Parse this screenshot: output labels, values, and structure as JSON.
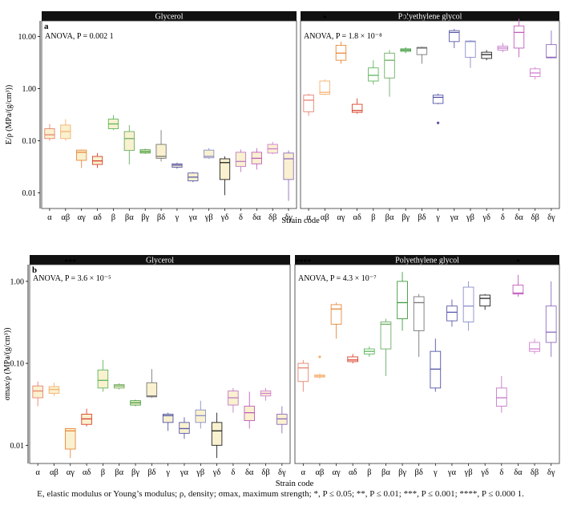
{
  "caption": "E, elastic modulus or Young’s modulus; ρ, density; σmax, maximum strength; *, P ≤ 0.05; **, P ≤ 0.01; ***, P ≤ 0.001; ****, P ≤ 0.000 1.",
  "colors": {
    "α": "#e8826f",
    "αβ": "#f5b070",
    "αγ": "#e9883a",
    "αδ": "#d9412b",
    "β": "#5fb65e",
    "βα": "#6cae64",
    "βγ": "#3c9a3c",
    "βδ": "#777777",
    "γ": "#5255a6",
    "γα": "#5a5aa8",
    "γβ": "#8b8fc8",
    "γδ": "#222222",
    "δ": "#c27ac6",
    "δα": "#c05dbd",
    "δβ": "#d17fd0",
    "δγ": "#8f6dbd"
  },
  "chart_data": [
    {
      "type": "box",
      "panel_label": "a",
      "ylabel": "E/ρ (MPa/(g/cm³))",
      "xlabel": "Strain code",
      "yscale": "log",
      "ylim": [
        0.005,
        20
      ],
      "yticks": [
        "0.01",
        "0.10",
        "1.00",
        "10.00"
      ],
      "facets": [
        {
          "title": "Glycerol",
          "anova": "ANOVA, P = 0.002 1",
          "fill": "#f9f1cf",
          "categories": [
            "α",
            "αβ",
            "αγ",
            "αδ",
            "β",
            "βα",
            "βγ",
            "βδ",
            "γ",
            "γα",
            "γβ",
            "γδ",
            "δ",
            "δα",
            "δβ",
            "δγ"
          ],
          "boxes": [
            {
              "min": 0.1,
              "q1": 0.11,
              "median": 0.13,
              "q3": 0.17,
              "max": 0.21,
              "sig": ""
            },
            {
              "min": 0.1,
              "q1": 0.11,
              "median": 0.15,
              "q3": 0.2,
              "max": 0.26,
              "sig": ""
            },
            {
              "min": 0.03,
              "q1": 0.042,
              "median": 0.06,
              "q3": 0.066,
              "max": 0.068,
              "sig": ""
            },
            {
              "min": 0.03,
              "q1": 0.035,
              "median": 0.041,
              "q3": 0.05,
              "max": 0.058,
              "sig": ""
            },
            {
              "min": 0.16,
              "q1": 0.17,
              "median": 0.21,
              "q3": 0.26,
              "max": 0.31,
              "sig": ""
            },
            {
              "min": 0.035,
              "q1": 0.065,
              "median": 0.11,
              "q3": 0.15,
              "max": 0.2,
              "sig": ""
            },
            {
              "min": 0.056,
              "q1": 0.058,
              "median": 0.062,
              "q3": 0.067,
              "max": 0.07,
              "sig": ""
            },
            {
              "min": 0.04,
              "q1": 0.046,
              "median": 0.05,
              "q3": 0.085,
              "max": 0.16,
              "sig": ""
            },
            {
              "min": 0.029,
              "q1": 0.031,
              "median": 0.034,
              "q3": 0.036,
              "max": 0.038,
              "sig": ""
            },
            {
              "min": 0.016,
              "q1": 0.017,
              "median": 0.02,
              "q3": 0.024,
              "max": 0.025,
              "sig": ""
            },
            {
              "min": 0.045,
              "q1": 0.047,
              "median": 0.05,
              "q3": 0.066,
              "max": 0.072,
              "sig": ""
            },
            {
              "min": 0.009,
              "q1": 0.018,
              "median": 0.038,
              "q3": 0.045,
              "max": 0.05,
              "sig": ""
            },
            {
              "min": 0.025,
              "q1": 0.032,
              "median": 0.04,
              "q3": 0.06,
              "max": 0.068,
              "sig": ""
            },
            {
              "min": 0.028,
              "q1": 0.036,
              "median": 0.046,
              "q3": 0.06,
              "max": 0.072,
              "sig": ""
            },
            {
              "min": 0.055,
              "q1": 0.058,
              "median": 0.07,
              "q3": 0.085,
              "max": 0.095,
              "sig": ""
            },
            {
              "min": 0.007,
              "q1": 0.018,
              "median": 0.045,
              "q3": 0.058,
              "max": 0.065,
              "sig": ""
            }
          ]
        },
        {
          "title": "Polyethylene glycol",
          "anova": "ANOVA, P = 1.8 × 10⁻⁸",
          "fill": "#ffffff",
          "categories": [
            "α",
            "αβ",
            "αγ",
            "αδ",
            "β",
            "βα",
            "βγ",
            "βδ",
            "γ",
            "γα",
            "γβ",
            "γδ",
            "δ",
            "δα",
            "δβ",
            "δγ"
          ],
          "boxes": [
            {
              "min": 0.3,
              "q1": 0.36,
              "median": 0.6,
              "q3": 0.75,
              "max": 0.8,
              "sig": ""
            },
            {
              "min": 0.75,
              "q1": 0.78,
              "median": 0.85,
              "q3": 1.4,
              "max": 1.5,
              "sig": "*"
            },
            {
              "min": 3.0,
              "q1": 3.5,
              "median": 4.8,
              "q3": 6.8,
              "max": 8.0,
              "sig": ""
            },
            {
              "min": 0.33,
              "q1": 0.35,
              "median": 0.38,
              "q3": 0.5,
              "max": 0.65,
              "sig": ""
            },
            {
              "min": 1.2,
              "q1": 1.4,
              "median": 1.8,
              "q3": 2.5,
              "max": 3.5,
              "sig": ""
            },
            {
              "min": 0.7,
              "q1": 1.6,
              "median": 3.5,
              "q3": 4.8,
              "max": 5.5,
              "sig": ""
            },
            {
              "min": 4.8,
              "q1": 5.2,
              "median": 5.5,
              "q3": 5.8,
              "max": 6.2,
              "sig": "**"
            },
            {
              "min": 3.0,
              "q1": 4.5,
              "median": 6.0,
              "q3": 6.2,
              "max": 6.4,
              "sig": ""
            },
            {
              "min": 0.5,
              "q1": 0.52,
              "median": 0.68,
              "q3": 0.75,
              "max": 0.8,
              "outliers": [
                0.22
              ],
              "sig": ""
            },
            {
              "min": 6.0,
              "q1": 8.0,
              "median": 12.0,
              "q3": 13.0,
              "max": 14.0,
              "sig": ""
            },
            {
              "min": 2.5,
              "q1": 4.0,
              "median": 8.0,
              "q3": 8.2,
              "max": 8.5,
              "sig": ""
            },
            {
              "min": 3.5,
              "q1": 3.8,
              "median": 4.5,
              "q3": 5.0,
              "max": 5.5,
              "sig": ""
            },
            {
              "min": 5.0,
              "q1": 5.5,
              "median": 6.0,
              "q3": 6.5,
              "max": 7.5,
              "sig": ""
            },
            {
              "min": 4.0,
              "q1": 6.0,
              "median": 12.0,
              "q3": 16.0,
              "max": 22.0,
              "sig": ""
            },
            {
              "min": 1.5,
              "q1": 1.7,
              "median": 2.0,
              "q3": 2.4,
              "max": 2.6,
              "sig": ""
            },
            {
              "min": 3.8,
              "q1": 3.9,
              "median": 4.0,
              "q3": 7.0,
              "max": 13.0,
              "sig": ""
            }
          ]
        }
      ]
    },
    {
      "type": "box",
      "panel_label": "b",
      "ylabel": "σmax/ρ (MPa/(g/cm³))",
      "xlabel": "Strain code",
      "yscale": "log",
      "ylim": [
        0.006,
        1.6
      ],
      "yticks": [
        "0.01",
        "0.10",
        "1.00"
      ],
      "facets": [
        {
          "title": "Glycerol",
          "anova": "ANOVA, P = 3.6 × 10⁻⁵",
          "fill": "#f9f1cf",
          "categories": [
            "α",
            "αβ",
            "αγ",
            "αδ",
            "β",
            "βα",
            "βγ",
            "βδ",
            "γ",
            "γα",
            "γβ",
            "γδ",
            "δ",
            "δα",
            "δβ",
            "δγ"
          ],
          "boxes": [
            {
              "min": 0.03,
              "q1": 0.038,
              "median": 0.046,
              "q3": 0.053,
              "max": 0.06,
              "sig": ""
            },
            {
              "min": 0.04,
              "q1": 0.043,
              "median": 0.048,
              "q3": 0.052,
              "max": 0.058,
              "sig": ""
            },
            {
              "min": 0.007,
              "q1": 0.009,
              "median": 0.015,
              "q3": 0.016,
              "max": 0.016,
              "sig": "***"
            },
            {
              "min": 0.017,
              "q1": 0.018,
              "median": 0.021,
              "q3": 0.024,
              "max": 0.028,
              "sig": ""
            },
            {
              "min": 0.045,
              "q1": 0.05,
              "median": 0.062,
              "q3": 0.083,
              "max": 0.11,
              "sig": ""
            },
            {
              "min": 0.048,
              "q1": 0.05,
              "median": 0.053,
              "q3": 0.055,
              "max": 0.057,
              "sig": ""
            },
            {
              "min": 0.03,
              "q1": 0.031,
              "median": 0.033,
              "q3": 0.035,
              "max": 0.036,
              "sig": ""
            },
            {
              "min": 0.038,
              "q1": 0.039,
              "median": 0.04,
              "q3": 0.058,
              "max": 0.085,
              "sig": ""
            },
            {
              "min": 0.015,
              "q1": 0.019,
              "median": 0.023,
              "q3": 0.024,
              "max": 0.025,
              "sig": ""
            },
            {
              "min": 0.012,
              "q1": 0.014,
              "median": 0.016,
              "q3": 0.019,
              "max": 0.022,
              "sig": ""
            },
            {
              "min": 0.016,
              "q1": 0.019,
              "median": 0.023,
              "q3": 0.027,
              "max": 0.035,
              "sig": ""
            },
            {
              "min": 0.007,
              "q1": 0.01,
              "median": 0.015,
              "q3": 0.019,
              "max": 0.025,
              "sig": ""
            },
            {
              "min": 0.025,
              "q1": 0.031,
              "median": 0.038,
              "q3": 0.046,
              "max": 0.05,
              "sig": ""
            },
            {
              "min": 0.016,
              "q1": 0.02,
              "median": 0.025,
              "q3": 0.03,
              "max": 0.045,
              "sig": ""
            },
            {
              "min": 0.035,
              "q1": 0.04,
              "median": 0.043,
              "q3": 0.046,
              "max": 0.05,
              "sig": ""
            },
            {
              "min": 0.014,
              "q1": 0.018,
              "median": 0.021,
              "q3": 0.024,
              "max": 0.03,
              "sig": ""
            }
          ]
        },
        {
          "title": "Polyethylene glycol",
          "anova": "ANOVA, P = 4.3 × 10⁻⁷",
          "fill": "#ffffff",
          "categories": [
            "α",
            "αβ",
            "αγ",
            "αδ",
            "β",
            "βα",
            "βγ",
            "βδ",
            "γ",
            "γα",
            "γβ",
            "γδ",
            "δ",
            "δα",
            "δβ",
            "δγ"
          ],
          "boxes": [
            {
              "min": 0.045,
              "q1": 0.06,
              "median": 0.088,
              "q3": 0.1,
              "max": 0.11,
              "sig": "****"
            },
            {
              "min": 0.065,
              "q1": 0.068,
              "median": 0.07,
              "q3": 0.072,
              "max": 0.075,
              "outliers": [
                0.12
              ],
              "sig": ""
            },
            {
              "min": 0.2,
              "q1": 0.3,
              "median": 0.46,
              "q3": 0.52,
              "max": 0.55,
              "sig": ""
            },
            {
              "min": 0.1,
              "q1": 0.105,
              "median": 0.11,
              "q3": 0.12,
              "max": 0.13,
              "sig": ""
            },
            {
              "min": 0.12,
              "q1": 0.13,
              "median": 0.14,
              "q3": 0.15,
              "max": 0.16,
              "sig": ""
            },
            {
              "min": 0.07,
              "q1": 0.15,
              "median": 0.3,
              "q3": 0.32,
              "max": 0.35,
              "sig": ""
            },
            {
              "min": 0.25,
              "q1": 0.35,
              "median": 0.55,
              "q3": 1.0,
              "max": 1.3,
              "sig": ""
            },
            {
              "min": 0.12,
              "q1": 0.25,
              "median": 0.55,
              "q3": 0.65,
              "max": 0.7,
              "sig": ""
            },
            {
              "min": 0.045,
              "q1": 0.05,
              "median": 0.085,
              "q3": 0.14,
              "max": 0.2,
              "sig": ""
            },
            {
              "min": 0.28,
              "q1": 0.33,
              "median": 0.42,
              "q3": 0.5,
              "max": 0.6,
              "sig": ""
            },
            {
              "min": 0.25,
              "q1": 0.32,
              "median": 0.5,
              "q3": 0.85,
              "max": 1.0,
              "sig": ""
            },
            {
              "min": 0.45,
              "q1": 0.5,
              "median": 0.62,
              "q3": 0.68,
              "max": 0.7,
              "sig": ""
            },
            {
              "min": 0.025,
              "q1": 0.03,
              "median": 0.038,
              "q3": 0.05,
              "max": 0.07,
              "sig": ""
            },
            {
              "min": 0.65,
              "q1": 0.7,
              "median": 0.72,
              "q3": 0.9,
              "max": 1.2,
              "sig": "*"
            },
            {
              "min": 0.13,
              "q1": 0.14,
              "median": 0.15,
              "q3": 0.18,
              "max": 0.2,
              "sig": ""
            },
            {
              "min": 0.12,
              "q1": 0.18,
              "median": 0.24,
              "q3": 0.5,
              "max": 1.0,
              "sig": ""
            }
          ]
        }
      ]
    }
  ]
}
